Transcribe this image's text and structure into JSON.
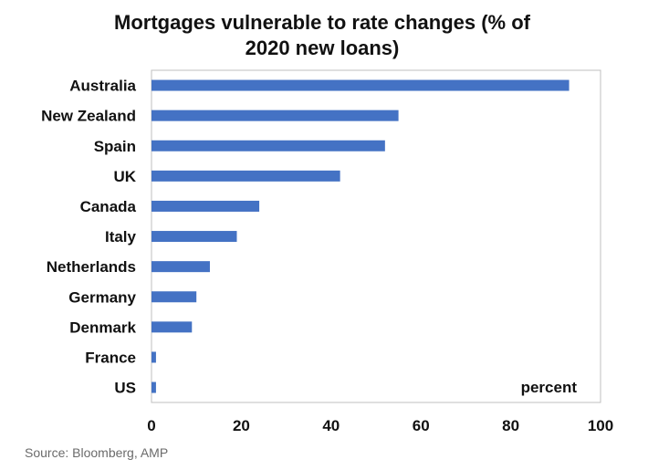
{
  "chart_data": {
    "type": "bar",
    "orientation": "horizontal",
    "title_lines": [
      "Mortgages vulnerable to rate changes (% of",
      "2020 new loans)"
    ],
    "categories": [
      "Australia",
      "New Zealand",
      "Spain",
      "UK",
      "Canada",
      "Italy",
      "Netherlands",
      "Germany",
      "Denmark",
      "France",
      "US"
    ],
    "values": [
      93,
      55,
      52,
      42,
      24,
      19,
      13,
      10,
      9,
      1,
      1
    ],
    "xlim": [
      0,
      100
    ],
    "xticks": [
      "0",
      "20",
      "40",
      "60",
      "80",
      "100"
    ],
    "unit_label": "percent",
    "bar_color": "#4472C4",
    "grid": false
  },
  "source_text": "Source: Bloomberg, AMP"
}
